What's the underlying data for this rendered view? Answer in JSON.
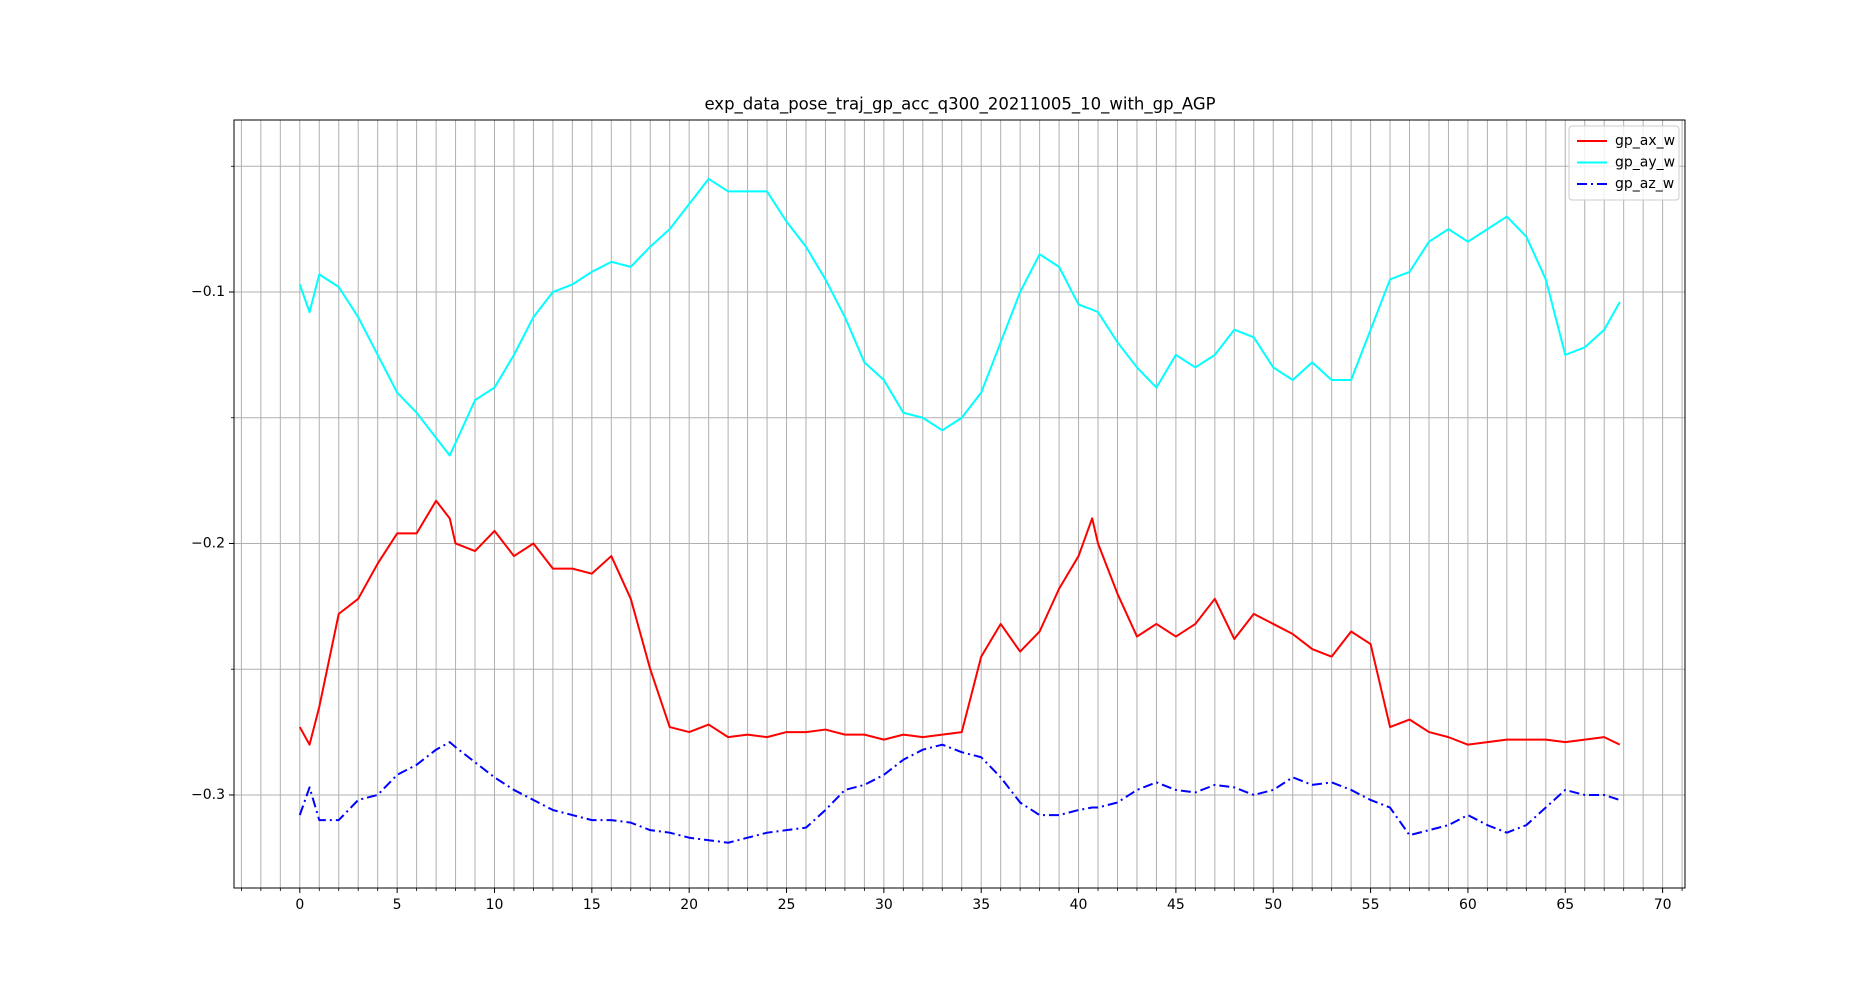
{
  "chart_data": {
    "type": "line",
    "title": "exp_data_pose_traj_gp_acc_q300_20211005_10_with_gp_AGP",
    "x": [
      0,
      0.5,
      1,
      2,
      3,
      4,
      5,
      6,
      7,
      7.7,
      8,
      9,
      10,
      11,
      12,
      13,
      14,
      15,
      16,
      17,
      18,
      19,
      20,
      21,
      22,
      23,
      24,
      25,
      26,
      27,
      28,
      29,
      30,
      31,
      32,
      33,
      34,
      35,
      36,
      37,
      38,
      39,
      40,
      40.7,
      41,
      42,
      43,
      44,
      45,
      46,
      47,
      48,
      49,
      50,
      51,
      52,
      53,
      54,
      55,
      56,
      57,
      58,
      59,
      60,
      61,
      62,
      63,
      64,
      65,
      66,
      67,
      67.8
    ],
    "series": [
      {
        "name": "gp_ax_w",
        "color": "#ff0000",
        "linestyle": "solid",
        "values": [
          -0.273,
          -0.28,
          -0.265,
          -0.228,
          -0.222,
          -0.208,
          -0.196,
          -0.196,
          -0.183,
          -0.19,
          -0.2,
          -0.203,
          -0.195,
          -0.205,
          -0.2,
          -0.21,
          -0.21,
          -0.212,
          -0.205,
          -0.222,
          -0.25,
          -0.273,
          -0.275,
          -0.272,
          -0.277,
          -0.276,
          -0.277,
          -0.275,
          -0.275,
          -0.274,
          -0.276,
          -0.276,
          -0.278,
          -0.276,
          -0.277,
          -0.276,
          -0.275,
          -0.245,
          -0.232,
          -0.243,
          -0.235,
          -0.218,
          -0.205,
          -0.19,
          -0.2,
          -0.22,
          -0.237,
          -0.232,
          -0.237,
          -0.232,
          -0.222,
          -0.238,
          -0.228,
          -0.232,
          -0.236,
          -0.242,
          -0.245,
          -0.235,
          -0.24,
          -0.273,
          -0.27,
          -0.275,
          -0.277,
          -0.28,
          -0.279,
          -0.278,
          -0.278,
          -0.278,
          -0.279,
          -0.278,
          -0.277,
          -0.28
        ]
      },
      {
        "name": "gp_ay_w",
        "color": "#00ffff",
        "linestyle": "solid",
        "values": [
          -0.097,
          -0.108,
          -0.093,
          -0.098,
          -0.11,
          -0.125,
          -0.14,
          -0.148,
          -0.158,
          -0.165,
          -0.16,
          -0.143,
          -0.138,
          -0.125,
          -0.11,
          -0.1,
          -0.097,
          -0.092,
          -0.088,
          -0.09,
          -0.082,
          -0.075,
          -0.065,
          -0.055,
          -0.06,
          -0.06,
          -0.06,
          -0.072,
          -0.082,
          -0.095,
          -0.11,
          -0.128,
          -0.135,
          -0.148,
          -0.15,
          -0.155,
          -0.15,
          -0.14,
          -0.12,
          -0.1,
          -0.085,
          -0.09,
          -0.105,
          -0.107,
          -0.108,
          -0.12,
          -0.13,
          -0.138,
          -0.125,
          -0.13,
          -0.125,
          -0.115,
          -0.118,
          -0.13,
          -0.135,
          -0.128,
          -0.135,
          -0.135,
          -0.115,
          -0.095,
          -0.092,
          -0.08,
          -0.075,
          -0.08,
          -0.075,
          -0.07,
          -0.078,
          -0.095,
          -0.125,
          -0.122,
          -0.115,
          -0.104
        ]
      },
      {
        "name": "gp_az_w",
        "color": "#0000ff",
        "linestyle": "dashdot",
        "values": [
          -0.308,
          -0.297,
          -0.31,
          -0.31,
          -0.302,
          -0.3,
          -0.292,
          -0.288,
          -0.282,
          -0.279,
          -0.281,
          -0.287,
          -0.293,
          -0.298,
          -0.302,
          -0.306,
          -0.308,
          -0.31,
          -0.31,
          -0.311,
          -0.314,
          -0.315,
          -0.317,
          -0.318,
          -0.319,
          -0.317,
          -0.315,
          -0.314,
          -0.313,
          -0.306,
          -0.298,
          -0.296,
          -0.292,
          -0.286,
          -0.282,
          -0.28,
          -0.283,
          -0.285,
          -0.293,
          -0.303,
          -0.308,
          -0.308,
          -0.306,
          -0.305,
          -0.305,
          -0.303,
          -0.298,
          -0.295,
          -0.298,
          -0.299,
          -0.296,
          -0.297,
          -0.3,
          -0.298,
          -0.293,
          -0.296,
          -0.295,
          -0.298,
          -0.302,
          -0.305,
          -0.316,
          -0.314,
          -0.312,
          -0.308,
          -0.312,
          -0.315,
          -0.312,
          -0.305,
          -0.298,
          -0.3,
          -0.3,
          -0.302
        ]
      }
    ],
    "xlim": [
      -3.38,
      71.15
    ],
    "ylim": [
      -0.337,
      -0.0316
    ],
    "xticks": [
      0,
      5,
      10,
      15,
      20,
      25,
      30,
      35,
      40,
      45,
      50,
      55,
      60,
      65,
      70
    ],
    "xticks_minor": [
      -3,
      -2,
      -1,
      1,
      2,
      3,
      4,
      6,
      7,
      8,
      9,
      11,
      12,
      13,
      14,
      16,
      17,
      18,
      19,
      21,
      22,
      23,
      24,
      26,
      27,
      28,
      29,
      31,
      32,
      33,
      34,
      36,
      37,
      38,
      39,
      41,
      42,
      43,
      44,
      46,
      47,
      48,
      49,
      51,
      52,
      53,
      54,
      56,
      57,
      58,
      59,
      61,
      62,
      63,
      64,
      66,
      67,
      68,
      69,
      71
    ],
    "yticks": [
      {
        "value": -0.3,
        "label": "−0.3"
      },
      {
        "value": -0.2,
        "label": "−0.2"
      },
      {
        "value": -0.1,
        "label": "−0.1"
      }
    ],
    "yticks_minor": [
      -0.25,
      -0.15,
      -0.05
    ],
    "grid": true,
    "legend": "upper right"
  }
}
